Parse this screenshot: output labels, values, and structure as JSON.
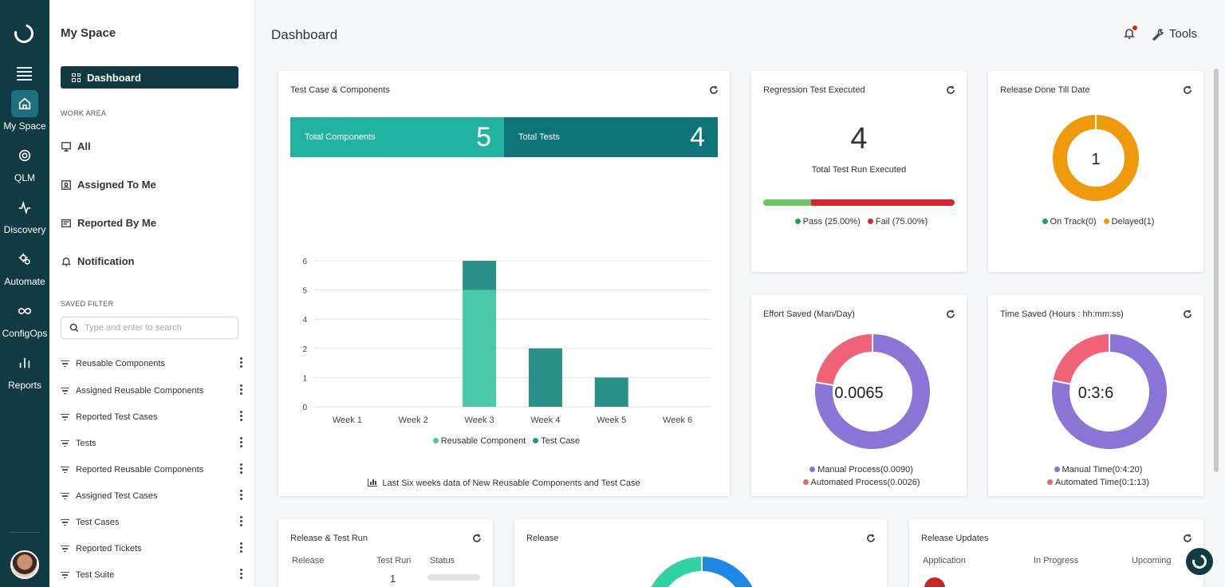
{
  "rail": {
    "items": [
      {
        "label": "My Space",
        "icon": "home-icon",
        "active": true
      },
      {
        "label": "QLM",
        "icon": "qlm-icon"
      },
      {
        "label": "Discovery",
        "icon": "pulse-icon"
      },
      {
        "label": "Automate",
        "icon": "gears-icon"
      },
      {
        "label": "ConfigOps",
        "icon": "infinity-icon"
      },
      {
        "label": "Reports",
        "icon": "bars-icon"
      }
    ]
  },
  "sidebar": {
    "title": "My Space",
    "dashboard_label": "Dashboard",
    "work_area_label": "WORK AREA",
    "work_items": [
      "All",
      "Assigned To Me",
      "Reported By Me",
      "Notification"
    ],
    "saved_filter_label": "SAVED FILTER",
    "search_placeholder": "Type and enter to search",
    "filters": [
      "Reusable Components",
      "Assigned Reusable Components",
      "Reported Test Cases",
      "Tests",
      "Reported Reusable Components",
      "Assigned Test Cases",
      "Test Cases",
      "Reported Tickets",
      "Test Suite"
    ]
  },
  "header": {
    "title": "Dashboard",
    "tools_label": "Tools"
  },
  "test_case_card": {
    "title": "Test Case & Components",
    "total_components_label": "Total Components",
    "total_components": "5",
    "total_tests_label": "Total Tests",
    "total_tests": "4",
    "footnote": "Last Six weeks data of New Reusable Components and Test Case",
    "colors": {
      "reusable": "#48c9a8",
      "testcase": "#2a9088"
    }
  },
  "chart_data": {
    "type": "bar",
    "stacked": true,
    "categories": [
      "Week 1",
      "Week 2",
      "Week 3",
      "Week 4",
      "Week 5",
      "Week 6"
    ],
    "series": [
      {
        "name": "Reusable Component",
        "values": [
          0,
          0,
          5,
          0,
          0,
          0
        ]
      },
      {
        "name": "Test Case",
        "values": [
          0,
          0,
          1,
          2,
          1,
          0
        ]
      }
    ],
    "yticks": [
      "0",
      "1",
      "2",
      "4",
      "5",
      "6"
    ],
    "legend_position": "bottom",
    "grid": true
  },
  "regression_card": {
    "title": "Regression Test Executed",
    "value": "4",
    "label": "Total Test Run Executed",
    "pass_label": "Pass (25.00%)",
    "fail_label": "Fail (75.00%)",
    "pass_fraction": 0.25,
    "colors": {
      "pass": "#6cc464",
      "fail": "#d9262e"
    }
  },
  "release_done_card": {
    "title": "Release Done Till Date",
    "value": "1",
    "on_track_label": "On Track(0)",
    "delayed_label": "Delayed(1)",
    "on_track": 0,
    "delayed": 1,
    "colors": {
      "on_track": "#20a05a",
      "delayed": "#ef9a0c"
    }
  },
  "effort_card": {
    "title": "Effort Saved (Man/Day)",
    "value": "0.0065",
    "manual_label": "Manual Process(0.0090)",
    "automated_label": "Automated Process(0.0026)",
    "manual": 0.009,
    "automated": 0.0026,
    "colors": {
      "manual": "#8a74d6",
      "automated": "#f06277"
    }
  },
  "time_card": {
    "title": "Time Saved (Hours : hh:mm:ss)",
    "value": "0:3:6",
    "manual_label": "Manual Time(0:4:20)",
    "automated_label": "Automated Time(0:1:13)",
    "manual": 260,
    "automated": 73
  },
  "release_test_run_card": {
    "title": "Release & Test Run",
    "col_release": "Release",
    "col_test_run": "Test Run",
    "col_status": "Status",
    "row_test_run": "1"
  },
  "release_card": {
    "title": "Release"
  },
  "release_updates_card": {
    "title": "Release Updates",
    "col_application": "Application",
    "col_in_progress": "In Progress",
    "col_upcoming": "Upcoming"
  }
}
